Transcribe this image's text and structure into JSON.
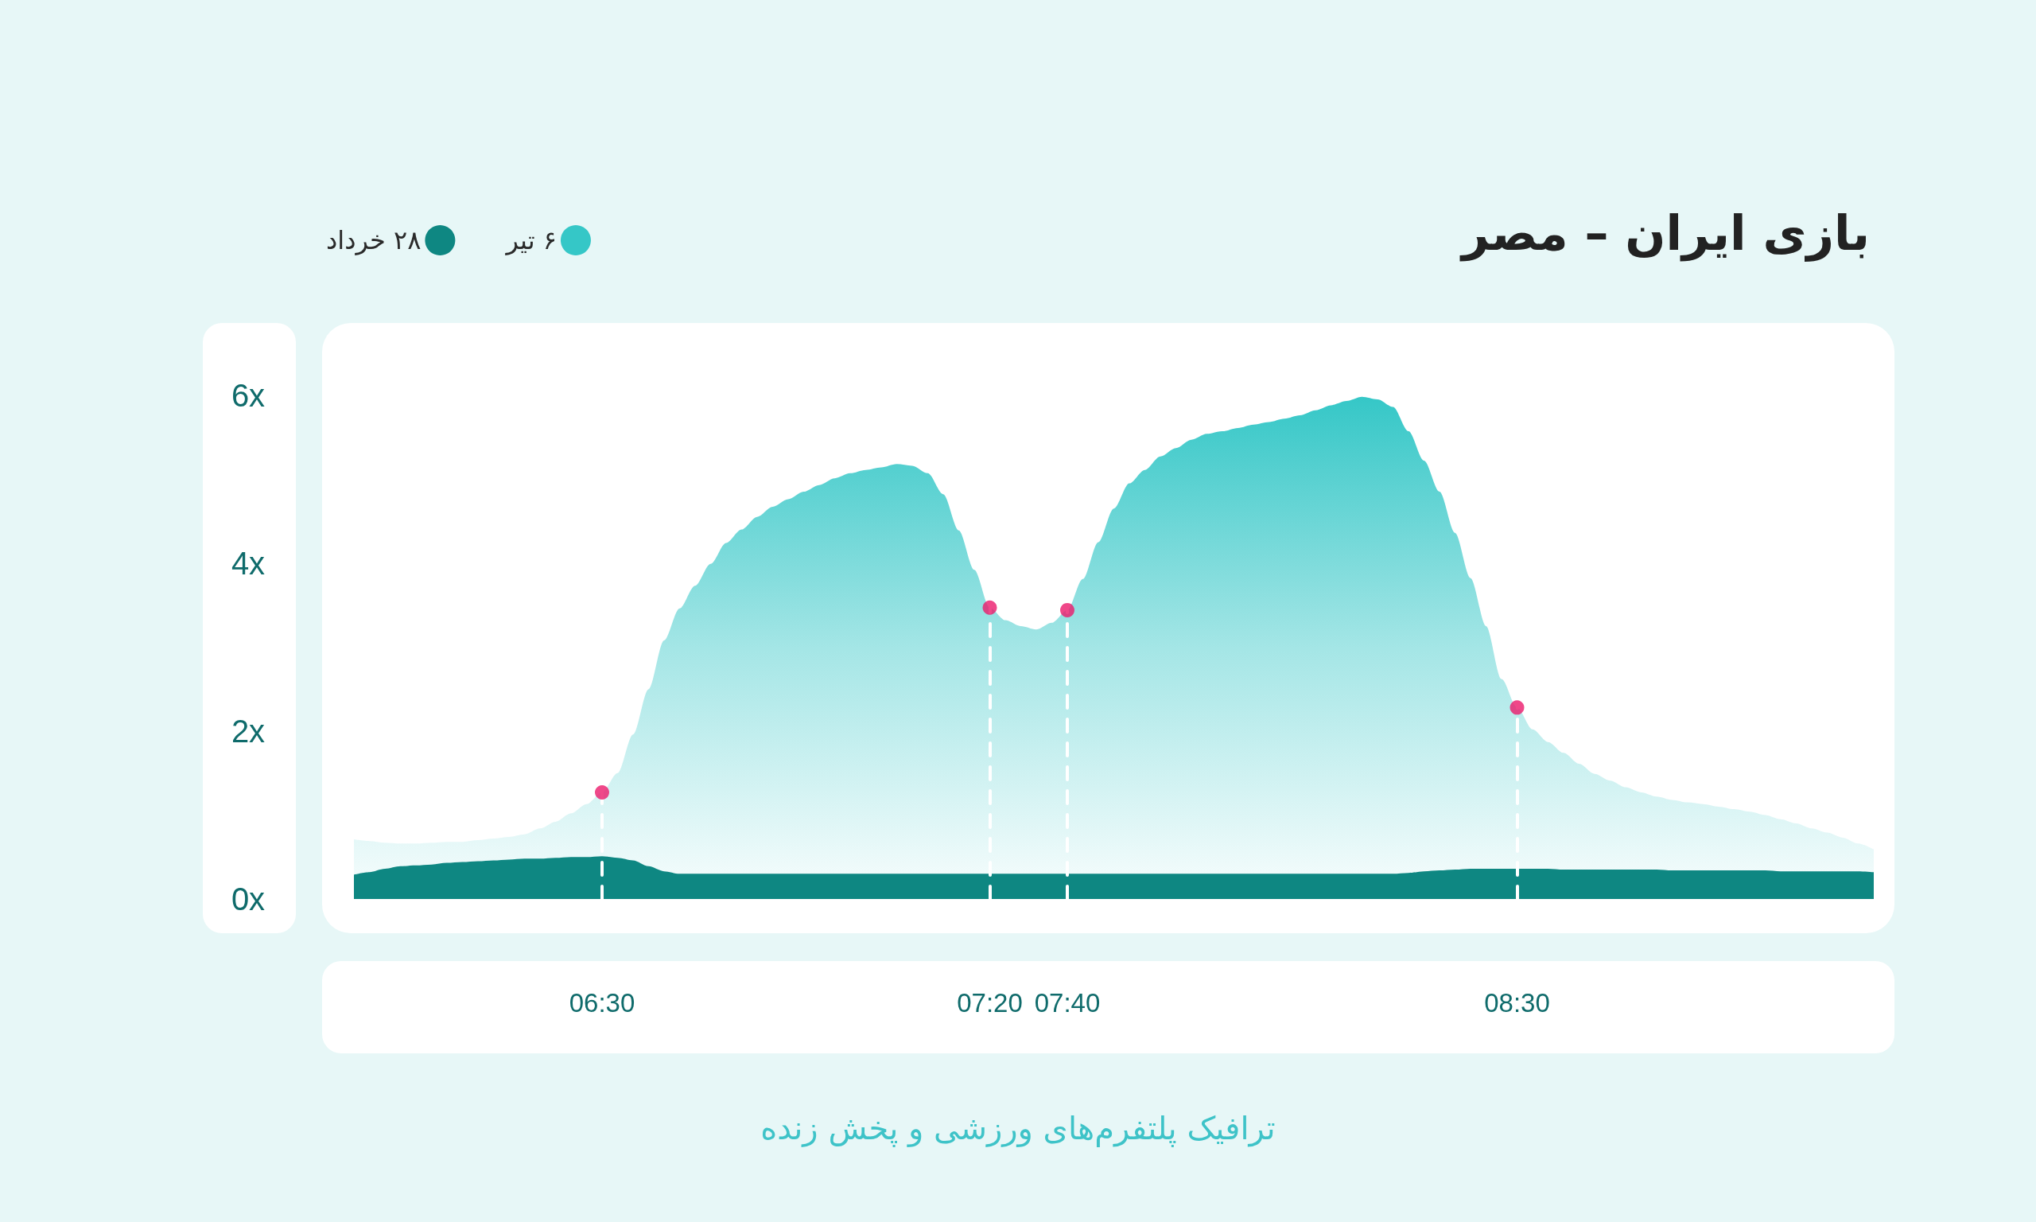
{
  "chart_data": {
    "type": "area",
    "title": "بازی ایران – مصر",
    "legend": "top left",
    "categories": [
      null,
      null,
      null,
      null,
      null,
      null,
      null,
      null,
      null,
      null,
      null,
      null,
      null,
      null,
      null,
      null,
      "06:30",
      null,
      null,
      null,
      null,
      null,
      null,
      null,
      null,
      null,
      null,
      null,
      null,
      null,
      null,
      null,
      null,
      null,
      null,
      null,
      null,
      null,
      null,
      null,
      null,
      "07:20",
      null,
      null,
      null,
      null,
      "07:40",
      null,
      null,
      null,
      null,
      null,
      null,
      null,
      null,
      null,
      null,
      null,
      null,
      null,
      null,
      null,
      null,
      null,
      null,
      null,
      null,
      null,
      null,
      null,
      null,
      null,
      null,
      null,
      null,
      "08:30",
      null,
      null,
      null,
      null,
      null,
      null,
      null,
      null,
      null,
      null,
      null,
      null,
      null,
      null,
      null,
      null,
      null,
      null,
      null,
      null,
      null,
      null,
      null
    ],
    "series": [
      {
        "name": "۶ تیر",
        "color": "#35c7c7",
        "values": [
          0.71,
          0.69,
          0.67,
          0.66,
          0.66,
          0.67,
          0.68,
          0.68,
          0.7,
          0.72,
          0.74,
          0.77,
          0.84,
          0.92,
          1.02,
          1.13,
          1.27,
          1.5,
          1.96,
          2.5,
          3.08,
          3.46,
          3.73,
          3.99,
          4.24,
          4.4,
          4.55,
          4.67,
          4.76,
          4.85,
          4.93,
          5.01,
          5.07,
          5.11,
          5.14,
          5.18,
          5.16,
          5.07,
          4.82,
          4.39,
          3.92,
          3.47,
          3.32,
          3.25,
          3.21,
          3.29,
          3.44,
          3.81,
          4.25,
          4.65,
          4.95,
          5.11,
          5.27,
          5.37,
          5.47,
          5.54,
          5.57,
          5.61,
          5.65,
          5.68,
          5.72,
          5.76,
          5.82,
          5.88,
          5.93,
          5.98,
          5.95,
          5.86,
          5.57,
          5.22,
          4.85,
          4.36,
          3.82,
          3.25,
          2.62,
          2.28,
          2.02,
          1.87,
          1.74,
          1.61,
          1.49,
          1.41,
          1.33,
          1.27,
          1.22,
          1.18,
          1.15,
          1.13,
          1.1,
          1.07,
          1.04,
          1.0,
          0.95,
          0.9,
          0.84,
          0.79,
          0.73,
          0.66,
          0.59
        ]
      },
      {
        "name": "۲۸ خرداد",
        "color": "#0e8782",
        "values": [
          0.29,
          0.32,
          0.36,
          0.39,
          0.4,
          0.41,
          0.43,
          0.44,
          0.45,
          0.46,
          0.47,
          0.48,
          0.48,
          0.49,
          0.5,
          0.5,
          0.51,
          0.49,
          0.46,
          0.39,
          0.33,
          0.3,
          0.3,
          0.3,
          0.3,
          0.3,
          0.3,
          0.3,
          0.3,
          0.3,
          0.3,
          0.3,
          0.3,
          0.3,
          0.3,
          0.3,
          0.3,
          0.3,
          0.3,
          0.3,
          0.3,
          0.3,
          0.3,
          0.3,
          0.3,
          0.3,
          0.3,
          0.3,
          0.3,
          0.3,
          0.3,
          0.3,
          0.3,
          0.3,
          0.3,
          0.3,
          0.3,
          0.3,
          0.3,
          0.3,
          0.3,
          0.3,
          0.3,
          0.3,
          0.3,
          0.3,
          0.3,
          0.3,
          0.31,
          0.33,
          0.34,
          0.35,
          0.36,
          0.36,
          0.36,
          0.36,
          0.36,
          0.36,
          0.35,
          0.35,
          0.35,
          0.35,
          0.35,
          0.35,
          0.35,
          0.34,
          0.34,
          0.34,
          0.34,
          0.34,
          0.34,
          0.34,
          0.33,
          0.33,
          0.33,
          0.33,
          0.33,
          0.33,
          0.32
        ]
      },
      {
        "type": "lollipop",
        "color": "#eb1a6b",
        "marker": "circle",
        "line_style": "dashed",
        "x": [
          "06:30",
          "07:20",
          "07:40",
          "08:30"
        ],
        "values": [
          1.27,
          3.47,
          3.44,
          2.28
        ]
      }
    ],
    "ylim": [
      0,
      6.85
    ],
    "yticks": [
      {
        "value": 0,
        "label": "0x"
      },
      {
        "value": 2,
        "label": "2x"
      },
      {
        "value": 4,
        "label": "4x"
      },
      {
        "value": 6,
        "label": "6x"
      }
    ],
    "annotations": [
      "ترافیک پلتفرم‌های ورزشی و پخش زنده"
    ]
  }
}
